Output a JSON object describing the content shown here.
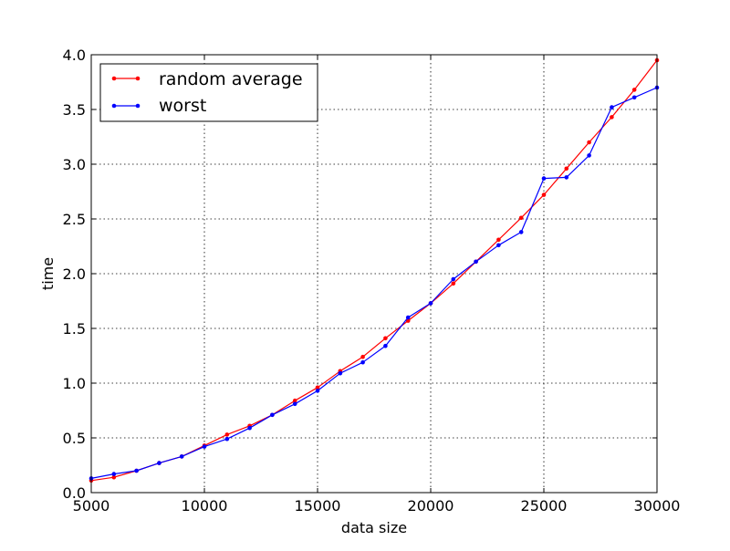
{
  "chart_data": {
    "type": "line",
    "title": "",
    "xlabel": "data size",
    "ylabel": "time",
    "xlim": [
      5000,
      30000
    ],
    "ylim": [
      0.0,
      4.0
    ],
    "xticks": [
      5000,
      10000,
      15000,
      20000,
      25000,
      30000
    ],
    "xtick_labels": [
      "5000",
      "10000",
      "15000",
      "20000",
      "25000",
      "30000"
    ],
    "yticks": [
      0.0,
      0.5,
      1.0,
      1.5,
      2.0,
      2.5,
      3.0,
      3.5,
      4.0
    ],
    "ytick_labels": [
      "0.0",
      "0.5",
      "1.0",
      "1.5",
      "2.0",
      "2.5",
      "3.0",
      "3.5",
      "4.0"
    ],
    "grid": true,
    "legend_position": "top-left",
    "x": [
      5000,
      6000,
      7000,
      8000,
      9000,
      10000,
      11000,
      12000,
      13000,
      14000,
      15000,
      16000,
      17000,
      18000,
      19000,
      20000,
      21000,
      22000,
      23000,
      24000,
      25000,
      26000,
      27000,
      28000,
      29000,
      30000
    ],
    "series": [
      {
        "name": "random average",
        "color": "#ff0000",
        "values": [
          0.11,
          0.14,
          0.2,
          0.27,
          0.33,
          0.43,
          0.53,
          0.61,
          0.71,
          0.84,
          0.96,
          1.11,
          1.24,
          1.41,
          1.57,
          1.73,
          1.91,
          2.11,
          2.31,
          2.51,
          2.72,
          2.96,
          3.2,
          3.43,
          3.68,
          3.95
        ]
      },
      {
        "name": "worst",
        "color": "#0000ff",
        "values": [
          0.13,
          0.17,
          0.2,
          0.27,
          0.33,
          0.42,
          0.49,
          0.59,
          0.71,
          0.81,
          0.93,
          1.09,
          1.19,
          1.34,
          1.6,
          1.73,
          1.95,
          2.11,
          2.26,
          2.38,
          2.87,
          2.88,
          3.08,
          3.52,
          3.61,
          3.7
        ]
      }
    ]
  }
}
